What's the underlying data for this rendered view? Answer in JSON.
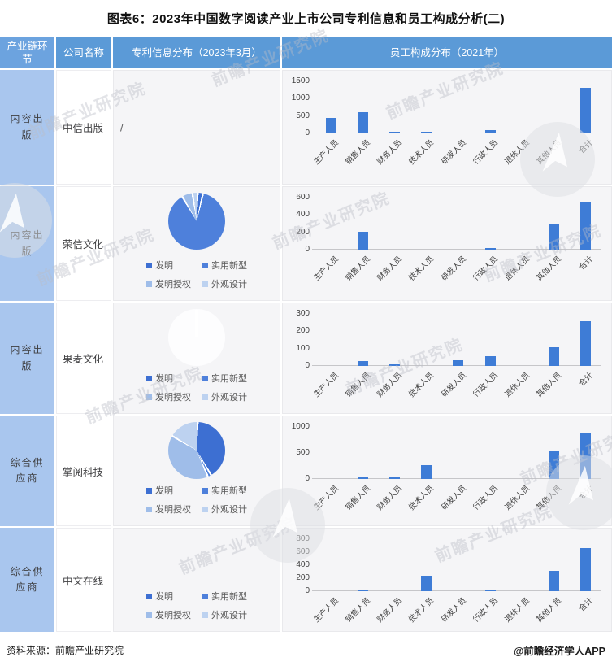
{
  "title": "图表6：2023年中国数字阅读产业上市公司专利信息和员工构成分析(二)",
  "footer": {
    "source": "资料来源：前瞻产业研究院",
    "handle": "@前瞻经济学人APP"
  },
  "watermark_text": "前瞻产业研究院",
  "table": {
    "headers": [
      "产业链环节",
      "公司名称",
      "专利信息分布（2023年3月）",
      "员工构成分布（2021年）"
    ]
  },
  "patent_legend": [
    "发明",
    "实用新型",
    "发明授权",
    "外观设计"
  ],
  "employee_categories": [
    "生产人员",
    "销售人员",
    "财务人员",
    "技术人员",
    "研发人员",
    "行政人员",
    "退休人员",
    "其他人员",
    "合计"
  ],
  "colors": {
    "header_bg": "#5B9AD7",
    "header_first_bg": "#6CA3DF",
    "chain_cell_bg": "#A9C6EE",
    "cell_bg": "#F5F5F7",
    "bar": "#3E7CD6",
    "pie_palette": [
      "#3D6FD2",
      "#4E80DB",
      "#9FBDE9",
      "#BDD2F0"
    ],
    "axis_line": "#C6C6C9"
  },
  "rows": [
    {
      "chain": "内容出版",
      "company": "中信出版",
      "patent": {
        "kind": "slash",
        "text": "/"
      },
      "employee_chart": "citic-bar"
    },
    {
      "chain": "内容出版",
      "company": "荣信文化",
      "patent": {
        "kind": "pie",
        "chart": "rongxin-pie"
      },
      "employee_chart": "rongxin-bar"
    },
    {
      "chain": "内容出版",
      "company": "果麦文化",
      "patent": {
        "kind": "pie-white",
        "chart": "guomai-pie"
      },
      "employee_chart": "guomai-bar"
    },
    {
      "chain": "综合供应商",
      "company": "掌阅科技",
      "patent": {
        "kind": "pie",
        "chart": "zhangyue-pie"
      },
      "employee_chart": "zhangyue-bar"
    },
    {
      "chain": "综合供应商",
      "company": "中文在线",
      "patent": {
        "kind": "pie-hidden",
        "chart": "zhongwen-pie"
      },
      "employee_chart": "zhongwen-bar"
    }
  ],
  "chart_data": [
    {
      "id": "citic-bar",
      "type": "bar",
      "company": "中信出版",
      "title": "员工构成分布（2021年）",
      "categories_ref": "employee_categories",
      "values": [
        440,
        620,
        25,
        55,
        0,
        95,
        0,
        0,
        1320
      ],
      "ylim": [
        0,
        1500
      ],
      "yticks": [
        0,
        500,
        1000,
        1500
      ]
    },
    {
      "id": "rongxin-pie",
      "type": "pie",
      "company": "荣信文化",
      "title": "专利信息分布（2023年3月）",
      "labels_ref": "patent_legend",
      "values_pct": [
        3,
        88,
        6,
        3
      ]
    },
    {
      "id": "rongxin-bar",
      "type": "bar",
      "company": "荣信文化",
      "title": "员工构成分布（2021年）",
      "categories_ref": "employee_categories",
      "values": [
        0,
        210,
        0,
        0,
        0,
        20,
        0,
        290,
        550
      ],
      "ylim": [
        0,
        600
      ],
      "yticks": [
        0,
        200,
        400,
        600
      ]
    },
    {
      "id": "guomai-pie",
      "type": "pie",
      "company": "果麦文化",
      "title": "专利信息分布（2023年3月）",
      "labels_ref": "patent_legend",
      "values_pct": null,
      "appearance": "white-outline-only"
    },
    {
      "id": "guomai-bar",
      "type": "bar",
      "company": "果麦文化",
      "title": "员工构成分布（2021年）",
      "categories_ref": "employee_categories",
      "values": [
        0,
        30,
        5,
        0,
        35,
        55,
        0,
        110,
        260
      ],
      "ylim": [
        0,
        300
      ],
      "yticks": [
        0,
        100,
        200,
        300
      ]
    },
    {
      "id": "zhangyue-pie",
      "type": "pie",
      "company": "掌阅科技",
      "title": "专利信息分布（2023年3月）",
      "labels_ref": "patent_legend",
      "values_pct": [
        41,
        2,
        40,
        17
      ]
    },
    {
      "id": "zhangyue-bar",
      "type": "bar",
      "company": "掌阅科技",
      "title": "员工构成分布（2021年）",
      "categories_ref": "employee_categories",
      "values": [
        0,
        35,
        15,
        270,
        0,
        0,
        0,
        530,
        880
      ],
      "ylim": [
        0,
        1000
      ],
      "yticks": [
        0,
        500,
        1000
      ]
    },
    {
      "id": "zhongwen-pie",
      "type": "pie",
      "company": "中文在线",
      "title": "专利信息分布（2023年3月）",
      "labels_ref": "patent_legend",
      "values_pct": null,
      "appearance": "not-visible"
    },
    {
      "id": "zhongwen-bar",
      "type": "bar",
      "company": "中文在线",
      "title": "员工构成分布（2021年）",
      "categories_ref": "employee_categories",
      "values": [
        0,
        30,
        0,
        240,
        0,
        20,
        0,
        310,
        660
      ],
      "ylim": [
        0,
        800
      ],
      "yticks": [
        0,
        200,
        400,
        600,
        800
      ]
    }
  ]
}
